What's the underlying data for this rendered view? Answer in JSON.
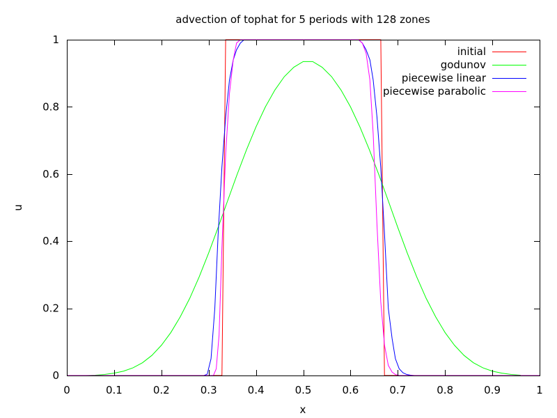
{
  "chart_data": {
    "type": "line",
    "title": "advection of tophat for 5 periods with 128 zones",
    "xlabel": "x",
    "ylabel": "u",
    "xlim": [
      0,
      1
    ],
    "ylim": [
      0,
      1
    ],
    "xticks": [
      0,
      0.1,
      0.2,
      0.3,
      0.4,
      0.5,
      0.6,
      0.7,
      0.8,
      0.9,
      1
    ],
    "yticks": [
      0,
      0.2,
      0.4,
      0.6,
      0.8,
      1
    ],
    "xtick_labels": [
      "0",
      "0.1",
      "0.2",
      "0.3",
      "0.4",
      "0.5",
      "0.6",
      "0.7",
      "0.8",
      "0.9",
      "1"
    ],
    "ytick_labels": [
      "0",
      "0.2",
      "0.4",
      "0.6",
      "0.8",
      "1"
    ],
    "grid": false,
    "legend_position": "top-right",
    "series": [
      {
        "name": "initial",
        "color": "#ff0000",
        "x": [
          0.0,
          0.3281,
          0.3359,
          0.6641,
          0.6719,
          1.0
        ],
        "y": [
          0.0,
          0.0,
          1.0,
          1.0,
          0.0,
          0.0
        ]
      },
      {
        "name": "godunov",
        "color": "#00ff00",
        "x": [
          0.0,
          0.04,
          0.06,
          0.08,
          0.1,
          0.12,
          0.14,
          0.16,
          0.18,
          0.2,
          0.22,
          0.24,
          0.26,
          0.28,
          0.3,
          0.32,
          0.34,
          0.36,
          0.38,
          0.4,
          0.42,
          0.44,
          0.46,
          0.48,
          0.5,
          0.52,
          0.54,
          0.56,
          0.58,
          0.6,
          0.62,
          0.64,
          0.66,
          0.68,
          0.7,
          0.72,
          0.74,
          0.76,
          0.78,
          0.8,
          0.82,
          0.84,
          0.86,
          0.88,
          0.9,
          0.92,
          0.94,
          0.96
        ],
        "y": [
          0.0,
          0.0,
          0.001,
          0.003,
          0.007,
          0.013,
          0.023,
          0.038,
          0.06,
          0.09,
          0.128,
          0.175,
          0.23,
          0.294,
          0.365,
          0.441,
          0.52,
          0.598,
          0.672,
          0.74,
          0.8,
          0.85,
          0.89,
          0.918,
          0.935,
          0.935,
          0.918,
          0.89,
          0.85,
          0.8,
          0.74,
          0.672,
          0.598,
          0.52,
          0.441,
          0.365,
          0.294,
          0.23,
          0.175,
          0.128,
          0.09,
          0.06,
          0.038,
          0.023,
          0.013,
          0.007,
          0.003,
          0.001
        ]
      },
      {
        "name": "piecewise linear",
        "color": "#0000ff",
        "x": [
          0.0,
          0.29,
          0.297,
          0.305,
          0.313,
          0.32,
          0.328,
          0.336,
          0.344,
          0.352,
          0.359,
          0.367,
          0.375,
          0.383,
          0.39,
          0.398,
          0.6,
          0.617,
          0.625,
          0.633,
          0.641,
          0.648,
          0.656,
          0.664,
          0.672,
          0.68,
          0.688,
          0.695,
          0.703,
          0.711,
          0.719,
          0.727,
          0.735,
          1.0
        ],
        "y": [
          0.0,
          0.0,
          0.004,
          0.05,
          0.2,
          0.42,
          0.62,
          0.77,
          0.88,
          0.94,
          0.97,
          0.99,
          1.0,
          1.0,
          1.0,
          1.0,
          1.0,
          1.0,
          0.99,
          0.97,
          0.94,
          0.88,
          0.77,
          0.62,
          0.42,
          0.2,
          0.11,
          0.05,
          0.02,
          0.008,
          0.003,
          0.001,
          0.0,
          0.0
        ]
      },
      {
        "name": "piecewise parabolic",
        "color": "#ff00ff",
        "x": [
          0.0,
          0.31,
          0.316,
          0.322,
          0.328,
          0.336,
          0.344,
          0.352,
          0.359,
          0.367,
          0.375,
          0.383,
          0.6,
          0.617,
          0.625,
          0.633,
          0.641,
          0.648,
          0.656,
          0.664,
          0.672,
          0.68,
          0.688,
          0.695,
          0.703,
          1.0
        ],
        "y": [
          0.0,
          0.0,
          0.02,
          0.12,
          0.38,
          0.66,
          0.84,
          0.94,
          0.99,
          1.0,
          1.0,
          1.0,
          1.0,
          1.0,
          0.99,
          0.96,
          0.88,
          0.72,
          0.45,
          0.22,
          0.09,
          0.03,
          0.01,
          0.003,
          0.0,
          0.0
        ]
      }
    ]
  }
}
